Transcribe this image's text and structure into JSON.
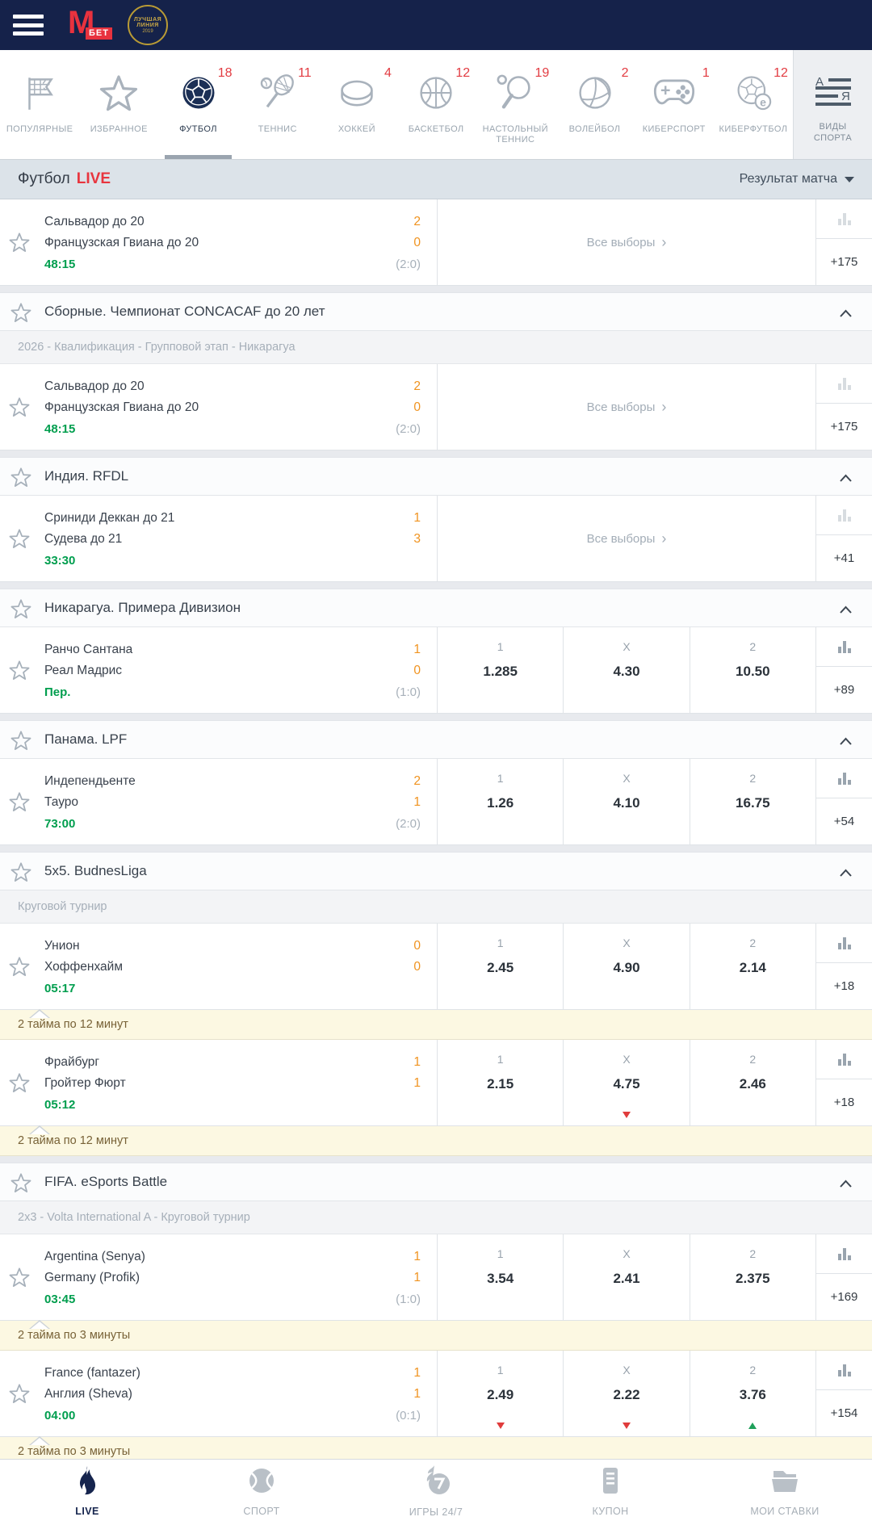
{
  "header": {
    "logo_m": "М",
    "logo_bet": "БЕТ",
    "award_line1": "ЛУЧШАЯ ЛИНИЯ",
    "award_year": "2019"
  },
  "sport_tabs": [
    {
      "label": "ПОПУЛЯРНЫЕ",
      "icon": "flag-icon",
      "count": null,
      "active": false
    },
    {
      "label": "ИЗБРАННОЕ",
      "icon": "star-icon",
      "count": null,
      "active": false
    },
    {
      "label": "ФУТБОЛ",
      "icon": "football-icon",
      "count": "18",
      "active": true
    },
    {
      "label": "ТЕННИС",
      "icon": "tennis-icon",
      "count": "11",
      "active": false
    },
    {
      "label": "ХОККЕЙ",
      "icon": "hockey-icon",
      "count": "4",
      "active": false
    },
    {
      "label": "БАСКЕТБОЛ",
      "icon": "basketball-icon",
      "count": "12",
      "active": false
    },
    {
      "label": "НАСТОЛЬНЫЙ ТЕННИС",
      "icon": "table-tennis-icon",
      "count": "19",
      "active": false,
      "narrow": true
    },
    {
      "label": "ВОЛЕЙБОЛ",
      "icon": "volleyball-icon",
      "count": "2",
      "active": false
    },
    {
      "label": "КИБЕРСПОРТ",
      "icon": "gamepad-icon",
      "count": "1",
      "active": false
    },
    {
      "label": "КИБЕРФУТБОЛ",
      "icon": "cyberfootball-icon",
      "count": "12",
      "active": false
    }
  ],
  "sports_menu": {
    "label": "ВИДЫ СПОРТА",
    "icon": "az-list-icon"
  },
  "filter_bar": {
    "title": "Футбол",
    "live_badge": "LIVE",
    "market_selector": "Результат матча"
  },
  "labels": {
    "all_picks": "Все выборы",
    "odds_headers": [
      "1",
      "X",
      "2"
    ]
  },
  "feed": [
    {
      "type": "match",
      "teams": [
        "Сальвадор до 20",
        "Французская Гвиана до 20"
      ],
      "scores": [
        "2",
        "0"
      ],
      "time": "48:15",
      "halftime": "(2:0)",
      "market": "all",
      "more": "+175"
    },
    {
      "type": "league",
      "title": "Сборные. Чемпионат CONCACAF до 20 лет"
    },
    {
      "type": "subheader",
      "text": "2026 - Квалификация - Групповой этап - Никарагуа"
    },
    {
      "type": "match",
      "teams": [
        "Сальвадор до 20",
        "Французская Гвиана до 20"
      ],
      "scores": [
        "2",
        "0"
      ],
      "time": "48:15",
      "halftime": "(2:0)",
      "market": "all",
      "more": "+175"
    },
    {
      "type": "league",
      "title": "Индия. RFDL"
    },
    {
      "type": "match",
      "teams": [
        "Сриниди Деккан до 21",
        "Судева до 21"
      ],
      "scores": [
        "1",
        "3"
      ],
      "time": "33:30",
      "halftime": null,
      "market": "all",
      "more": "+41"
    },
    {
      "type": "league",
      "title": "Никарагуа. Примера Дивизион"
    },
    {
      "type": "match",
      "teams": [
        "Ранчо Сантана",
        "Реал Мадрис"
      ],
      "scores": [
        "1",
        "0"
      ],
      "time": "Пер.",
      "halftime": "(1:0)",
      "market": "odds",
      "odds": {
        "values": [
          "1.285",
          "4.30",
          "10.50"
        ],
        "trends": [
          null,
          null,
          null
        ]
      },
      "more": "+89"
    },
    {
      "type": "league",
      "title": "Панама. LPF"
    },
    {
      "type": "match",
      "teams": [
        "Индепендьенте",
        "Тауро"
      ],
      "scores": [
        "2",
        "1"
      ],
      "time": "73:00",
      "halftime": "(2:0)",
      "market": "odds",
      "odds": {
        "values": [
          "1.26",
          "4.10",
          "16.75"
        ],
        "trends": [
          null,
          null,
          null
        ]
      },
      "more": "+54"
    },
    {
      "type": "league",
      "title": "5x5. BudnesLiga"
    },
    {
      "type": "subheader",
      "text": "Круговой турнир"
    },
    {
      "type": "match",
      "teams": [
        "Унион",
        "Хоффенхайм"
      ],
      "scores": [
        "0",
        "0"
      ],
      "time": "05:17",
      "halftime": null,
      "market": "odds",
      "odds": {
        "values": [
          "2.45",
          "4.90",
          "2.14"
        ],
        "trends": [
          null,
          null,
          null
        ]
      },
      "more": "+18"
    },
    {
      "type": "note",
      "text": "2 тайма по 12 минут"
    },
    {
      "type": "match",
      "teams": [
        "Фрайбург",
        "Гройтер Фюрт"
      ],
      "scores": [
        "1",
        "1"
      ],
      "time": "05:12",
      "halftime": null,
      "market": "odds",
      "odds": {
        "values": [
          "2.15",
          "4.75",
          "2.46"
        ],
        "trends": [
          null,
          "down",
          null
        ]
      },
      "more": "+18"
    },
    {
      "type": "note",
      "text": "2 тайма по 12 минут"
    },
    {
      "type": "league",
      "title": "FIFA. eSports Battle"
    },
    {
      "type": "subheader",
      "text": "2x3 - Volta International A - Круговой турнир"
    },
    {
      "type": "match",
      "teams": [
        "Argentina (Senya)",
        "Germany (Profik)"
      ],
      "scores": [
        "1",
        "1"
      ],
      "time": "03:45",
      "halftime": "(1:0)",
      "market": "odds",
      "odds": {
        "values": [
          "3.54",
          "2.41",
          "2.375"
        ],
        "trends": [
          null,
          null,
          null
        ]
      },
      "more": "+169"
    },
    {
      "type": "note",
      "text": "2 тайма по 3 минуты"
    },
    {
      "type": "match",
      "teams": [
        "France (fantazer)",
        "Англия (Sheva)"
      ],
      "scores": [
        "1",
        "1"
      ],
      "time": "04:00",
      "halftime": "(0:1)",
      "market": "odds",
      "odds": {
        "values": [
          "2.49",
          "2.22",
          "3.76"
        ],
        "trends": [
          "down",
          "down",
          "up"
        ]
      },
      "more": "+154"
    },
    {
      "type": "note",
      "text": "2 тайма по 3 минуты"
    }
  ],
  "bottom_nav": [
    {
      "label": "LIVE",
      "icon": "flame-icon",
      "active": true
    },
    {
      "label": "СПОРТ",
      "icon": "sport-ball-icon",
      "active": false
    },
    {
      "label": "ИГРЫ 24/7",
      "icon": "games-247-icon",
      "active": false
    },
    {
      "label": "КУПОН",
      "icon": "coupon-icon",
      "active": false
    },
    {
      "label": "МОИ СТАВКИ",
      "icon": "my-bets-icon",
      "active": false
    }
  ]
}
